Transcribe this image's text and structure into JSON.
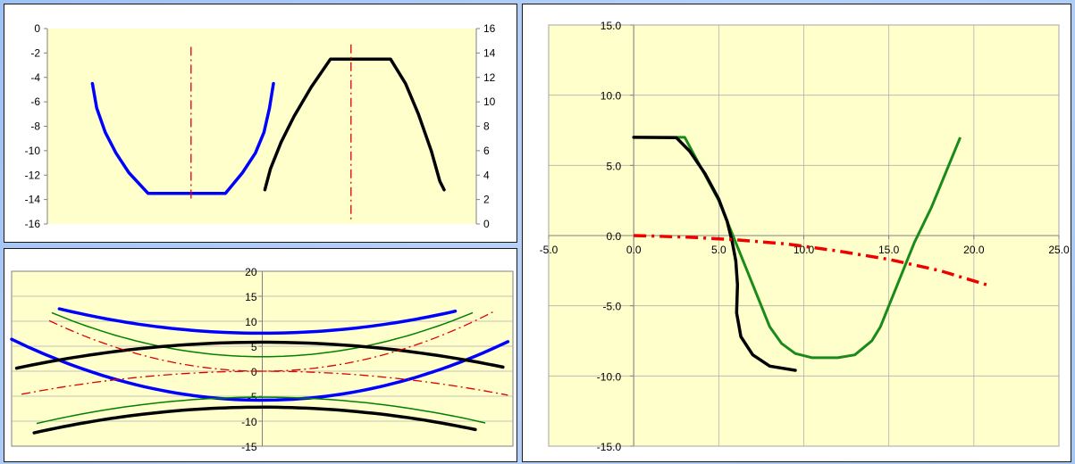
{
  "chart_data": [
    {
      "type": "line",
      "ylim_left": [
        -16,
        0
      ],
      "ylim_right": [
        0,
        16
      ],
      "xlim": [
        0,
        100
      ],
      "yticks_left": [
        "0",
        "-2",
        "-4",
        "-6",
        "-8",
        "-10",
        "-12",
        "-14",
        "-16"
      ],
      "yticks_right": [
        "16",
        "14",
        "12",
        "10",
        "8",
        "6",
        "4",
        "2",
        "0"
      ],
      "grid": false,
      "colors": {
        "plot_bg": "#ffffcc",
        "blue": "#0000ff",
        "black": "#000000",
        "red": "#dd0000"
      },
      "series": [
        {
          "axis": "left",
          "style": "blue-thick",
          "points": [
            [
              10.5,
              -4.5
            ],
            [
              11.5,
              -6.5
            ],
            [
              13.5,
              -8.5
            ],
            [
              16,
              -10.2
            ],
            [
              19,
              -11.8
            ],
            [
              23.5,
              -13.5
            ],
            [
              41.5,
              -13.5
            ],
            [
              45.5,
              -11.8
            ],
            [
              48.5,
              -10.2
            ],
            [
              50.5,
              -8.5
            ],
            [
              51.8,
              -6.5
            ],
            [
              52.7,
              -4.5
            ]
          ]
        },
        {
          "axis": "left",
          "style": "red-dashdot",
          "points": [
            [
              33.5,
              -1.5
            ],
            [
              33.5,
              -14.2
            ]
          ]
        },
        {
          "axis": "right",
          "style": "black-thick",
          "points": [
            [
              50.7,
              2.8
            ],
            [
              52,
              4.5
            ],
            [
              54.5,
              6.7
            ],
            [
              57.5,
              8.8
            ],
            [
              61.5,
              11.2
            ],
            [
              66,
              13.5
            ],
            [
              80,
              13.5
            ],
            [
              83.5,
              11.5
            ],
            [
              86.5,
              9
            ],
            [
              89.5,
              6
            ],
            [
              91.5,
              3.5
            ],
            [
              92.5,
              2.8
            ]
          ]
        },
        {
          "axis": "right",
          "style": "red-dashdot",
          "points": [
            [
              70.8,
              14.7
            ],
            [
              70.8,
              0.2
            ]
          ]
        }
      ]
    },
    {
      "type": "line",
      "ylim": [
        -15,
        20
      ],
      "xlim": [
        -10,
        10
      ],
      "yticks": [
        "20",
        "15",
        "10",
        "5",
        "0",
        "-5",
        "-10",
        "-15"
      ],
      "grid": true,
      "series": [
        {
          "style": "blue-thick",
          "fn": "c + k*x^2",
          "c": 7.6,
          "k": 0.0745,
          "x": [
            -8.1,
            7.7
          ]
        },
        {
          "style": "blue-thick",
          "fn": "c + k*x^2",
          "c": -5.8,
          "k": 0.122,
          "x": [
            -10,
            9.8
          ]
        },
        {
          "style": "green-thin",
          "fn": "c + k*x^2",
          "c": 2.9,
          "k": 0.125,
          "x": [
            -8.4,
            8.4
          ]
        },
        {
          "style": "green-thin",
          "fn": "c + k*x^2",
          "c": -5.2,
          "k": -0.065,
          "x": [
            -9,
            8.9
          ]
        },
        {
          "style": "black-thick",
          "fn": "c + k*x^2",
          "c": 5.8,
          "k": -0.054,
          "x": [
            -9.8,
            9.6
          ]
        },
        {
          "style": "black-thick",
          "fn": "c + k*x^2",
          "c": -7.2,
          "k": -0.062,
          "x": [
            -9.1,
            8.5
          ]
        },
        {
          "style": "red-dashdot",
          "fn": "c + k*x^2",
          "c": 0,
          "k": 0.14,
          "x": [
            -8.5,
            9.2
          ]
        },
        {
          "style": "red-dashdot",
          "fn": "c + k*x^2",
          "c": 0,
          "k": -0.05,
          "x": [
            -9.6,
            9.8
          ]
        }
      ]
    },
    {
      "type": "line",
      "xlim": [
        -5,
        25
      ],
      "ylim": [
        -15,
        15
      ],
      "xticks": [
        "-5.0",
        "0.0",
        "5.0",
        "10.0",
        "15.0",
        "20.0",
        "25.0"
      ],
      "yticks": [
        "15.0",
        "10.0",
        "5.0",
        "0.0",
        "-5.0",
        "-10.0",
        "-15.0"
      ],
      "grid": true,
      "series": [
        {
          "style": "green-thick",
          "points": [
            [
              0,
              7
            ],
            [
              3,
              7
            ],
            [
              5,
              2.5
            ],
            [
              6,
              -0.5
            ],
            [
              7,
              -3.5
            ],
            [
              8,
              -6.5
            ],
            [
              8.7,
              -7.7
            ],
            [
              9.5,
              -8.4
            ],
            [
              10.5,
              -8.7
            ],
            [
              12,
              -8.7
            ],
            [
              13,
              -8.5
            ],
            [
              14,
              -7.5
            ],
            [
              14.5,
              -6.5
            ],
            [
              15.5,
              -3.5
            ],
            [
              16.5,
              -0.5
            ],
            [
              17.5,
              2
            ],
            [
              19.2,
              7
            ]
          ]
        },
        {
          "style": "black-thick",
          "points": [
            [
              0,
              7
            ],
            [
              2.5,
              6.98
            ],
            [
              3.3,
              6
            ],
            [
              4.2,
              4.4
            ],
            [
              5,
              2.6
            ],
            [
              5.5,
              1
            ],
            [
              5.8,
              -0.5
            ],
            [
              6,
              -1.8
            ],
            [
              6.1,
              -3.5
            ],
            [
              6.05,
              -5.5
            ],
            [
              6.3,
              -7.2
            ],
            [
              7,
              -8.5
            ],
            [
              8,
              -9.3
            ],
            [
              9.5,
              -9.6
            ]
          ]
        },
        {
          "style": "red-dashdot-thick",
          "points": [
            [
              0,
              0
            ],
            [
              3,
              -0.1
            ],
            [
              6,
              -0.3
            ],
            [
              9,
              -0.6
            ],
            [
              12,
              -1.1
            ],
            [
              15,
              -1.7
            ],
            [
              18,
              -2.5
            ],
            [
              21,
              -3.6
            ]
          ]
        }
      ]
    }
  ]
}
